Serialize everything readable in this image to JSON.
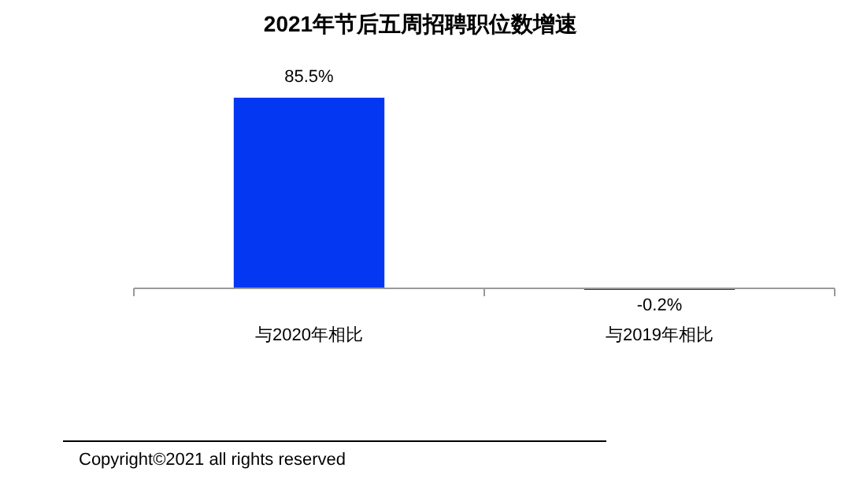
{
  "chart_data": {
    "type": "bar",
    "title": "2021年节后五周招聘职位数增速",
    "categories": [
      "与2020年相比",
      "与2019年相比"
    ],
    "values": [
      85.5,
      -0.2
    ],
    "value_labels": [
      "85.5%",
      "-0.2%"
    ],
    "color": "#0437f2",
    "annotations": [
      "Copyright©2021 all rights reserved"
    ]
  }
}
